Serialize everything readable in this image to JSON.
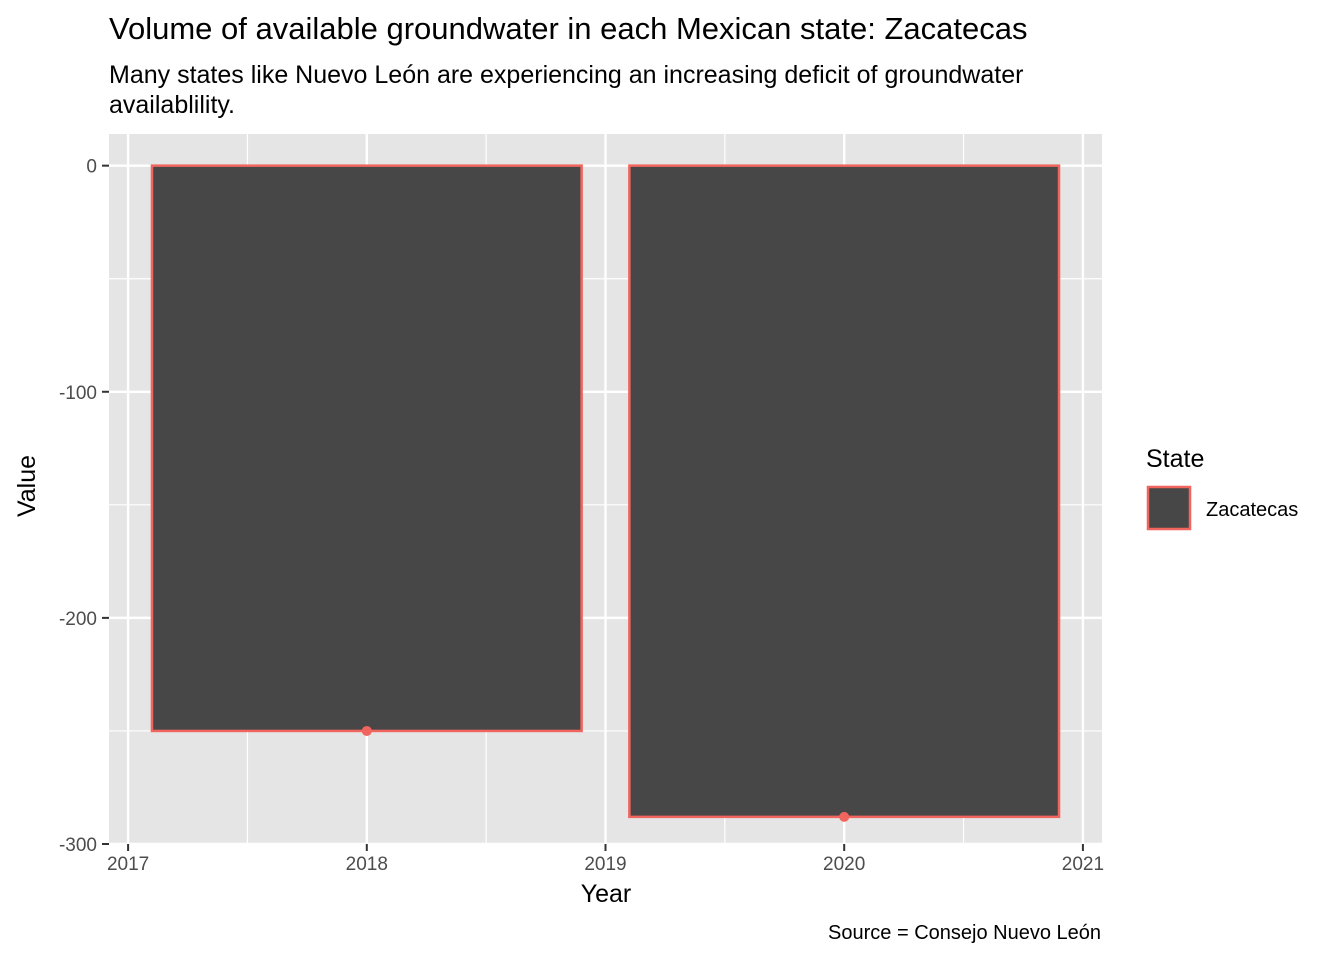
{
  "chart_data": {
    "type": "bar",
    "title": "Volume of available groundwater in each Mexican state: Zacatecas",
    "subtitle": "Many states like Nuevo León are experiencing an increasing deficit of groundwater availablility.",
    "caption": "Source = Consejo Nuevo León",
    "xlabel": "Year",
    "ylabel": "Value",
    "x": [
      2018,
      2020
    ],
    "values": [
      -250,
      -288
    ],
    "series": [
      {
        "name": "Zacatecas",
        "values": [
          -250,
          -288
        ]
      }
    ],
    "xlim": [
      2016.92,
      2021.08
    ],
    "ylim": [
      -300,
      14
    ],
    "xticks": [
      "2017",
      "2018",
      "2019",
      "2020",
      "2021"
    ],
    "yticks": [
      "0",
      "-100",
      "-200",
      "-300"
    ],
    "bar_width_years": 1.8,
    "grid": true,
    "legend": {
      "title": "State",
      "position": "right",
      "entries": [
        "Zacatecas"
      ]
    },
    "colors": {
      "panel": "#e5e5e5",
      "grid": "#ffffff",
      "bar_fill": "#474747",
      "bar_outline": "#f0665e",
      "point": "#f0665e",
      "tick_text": "#4d4d4d"
    }
  }
}
